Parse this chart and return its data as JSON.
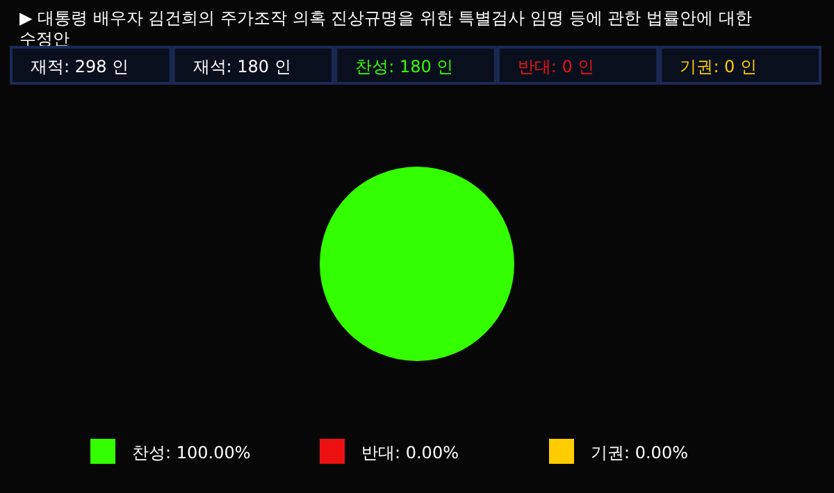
{
  "chart_data": {
    "type": "pie",
    "title": "▶ 대통령 배우자 김건희의 주가조작 의혹 진상규명을 위한 특별검사 임명 등에 관한 법률안에 대한 수정안",
    "annotations": [
      "재적: 298 인",
      "재석: 180 인",
      "찬성: 180 인",
      "반대: 0 인",
      "기권: 0 인"
    ],
    "categories": [
      "찬성",
      "반대",
      "기권"
    ],
    "values": [
      100,
      0,
      0
    ],
    "colors": [
      "#33ff00",
      "#ee1111",
      "#ffcc00"
    ],
    "value_labels": [
      ": 100.00%",
      ": 0.00%",
      ": 0.00%"
    ],
    "legend": "bottom"
  }
}
